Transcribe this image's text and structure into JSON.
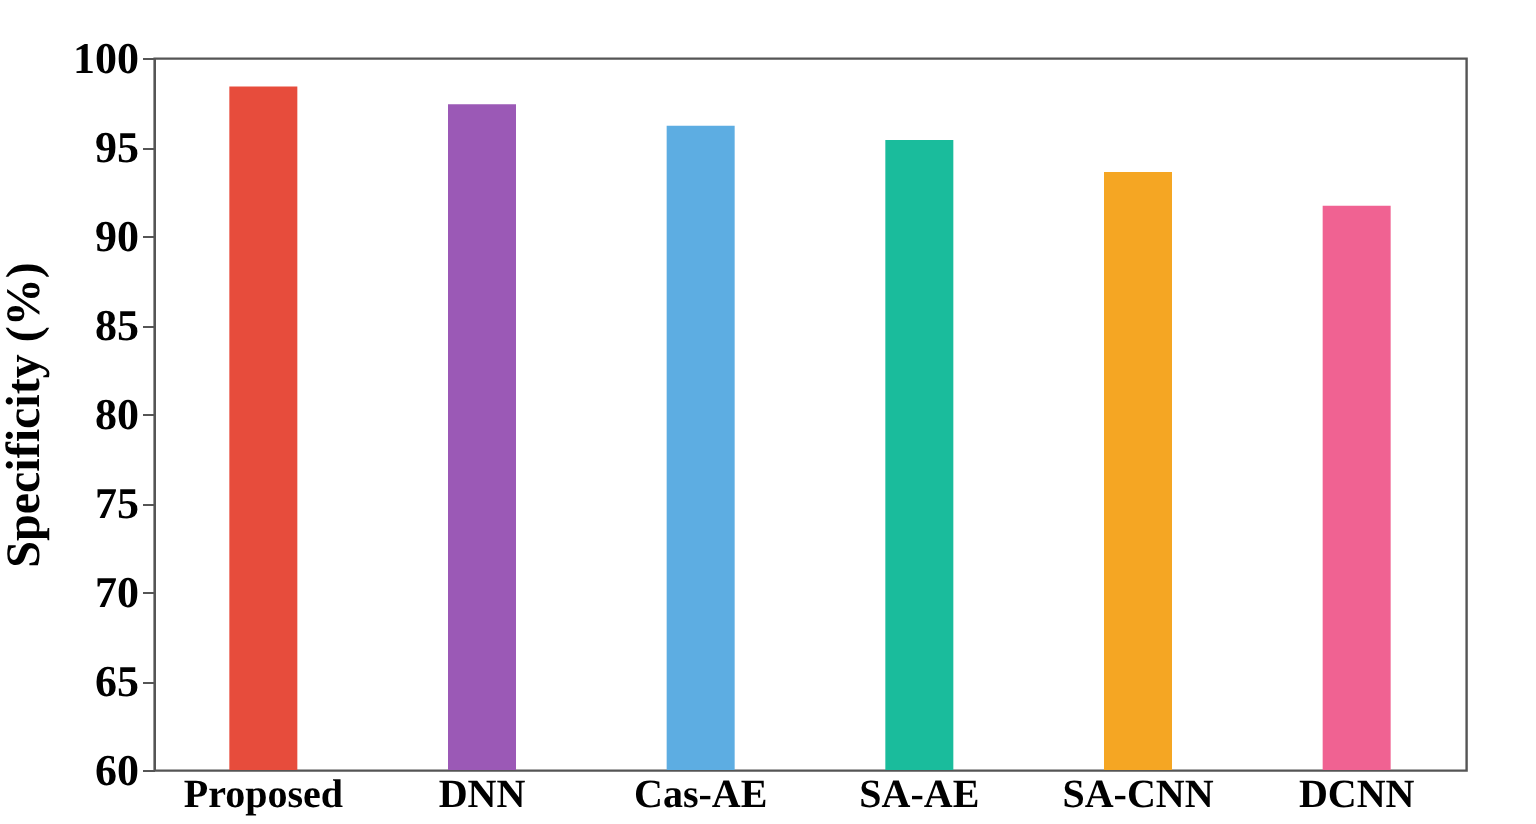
{
  "chart_data": {
    "type": "bar",
    "ylabel": "Specificity (%)",
    "categories": [
      "Proposed",
      "DNN",
      "Cas-AE",
      "SA-AE",
      "SA-CNN",
      "DCNN"
    ],
    "values": [
      98.4,
      97.4,
      96.2,
      95.4,
      93.6,
      91.7
    ],
    "colors": [
      "#e74c3c",
      "#9b59b6",
      "#5dade2",
      "#1abc9c",
      "#f5a623",
      "#f06292"
    ],
    "ylim": [
      60,
      100
    ],
    "yticks": [
      60,
      65,
      70,
      75,
      80,
      85,
      90,
      95,
      100
    ],
    "grid": false
  }
}
